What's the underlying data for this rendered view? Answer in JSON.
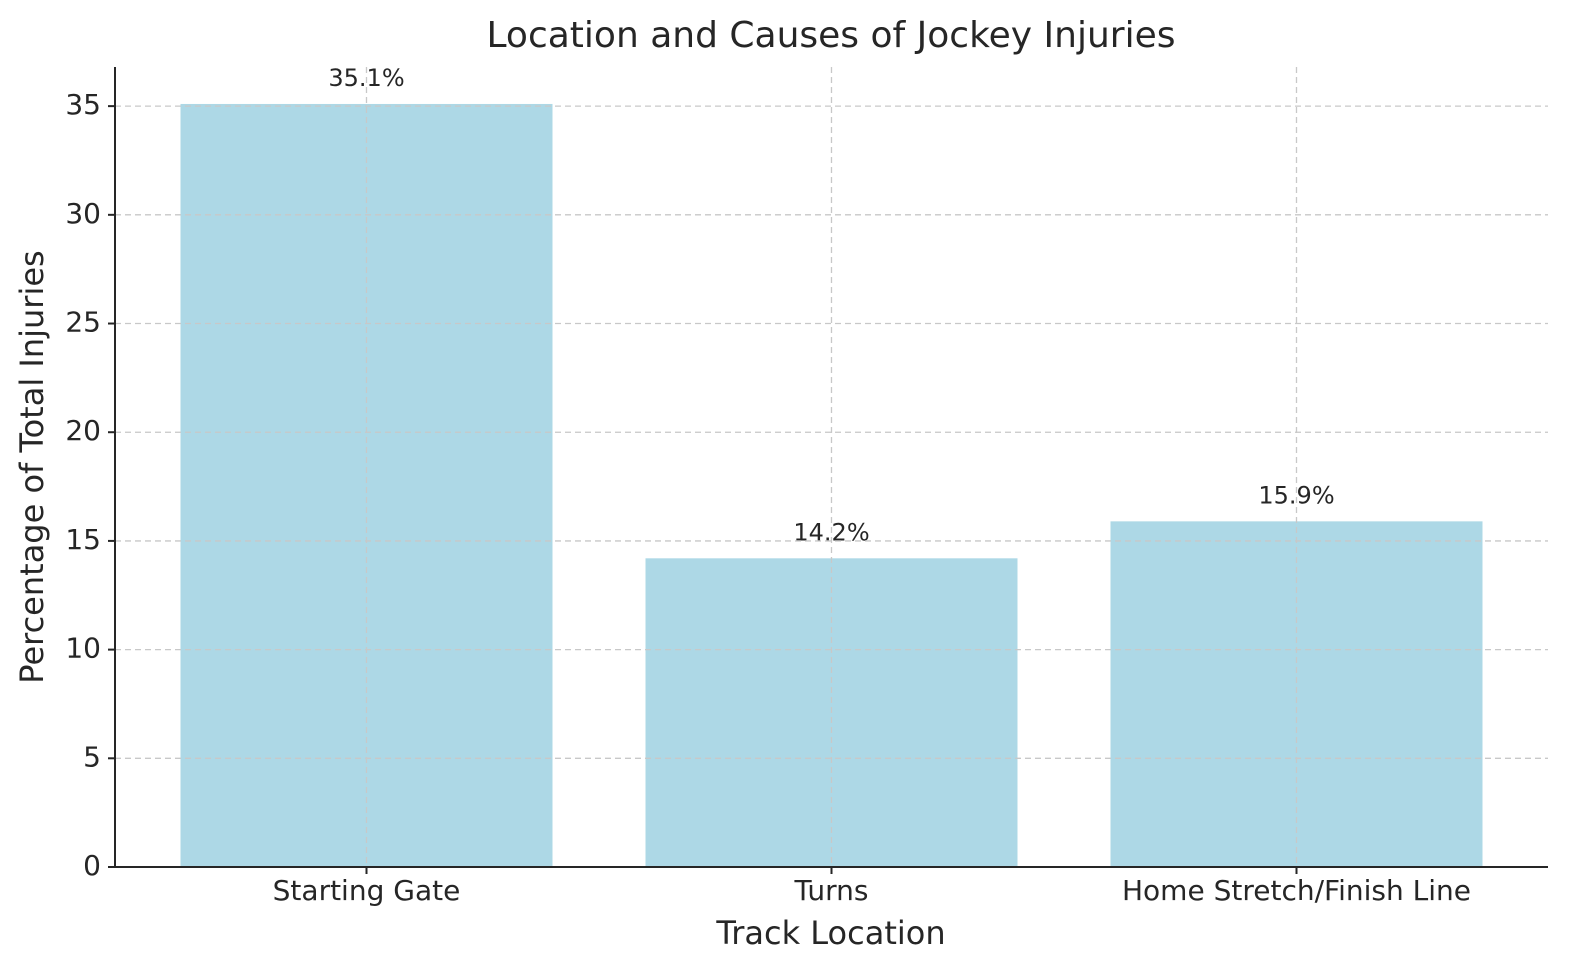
{
  "chart_data": {
    "type": "bar",
    "title": "Location and Causes of Jockey Injuries",
    "x_label": "Track Location",
    "y_label": "Percentage of Total Injuries",
    "categories": [
      "Starting Gate",
      "Turns",
      "Home Stretch/Finish Line"
    ],
    "values": [
      35.1,
      14.2,
      15.9
    ],
    "value_labels": [
      "35.1%",
      "14.2%",
      "15.9%"
    ],
    "color": "#add8e6",
    "ylim": [
      0,
      36.8
    ],
    "yticks": [
      0,
      5,
      10,
      15,
      20,
      25,
      30,
      35
    ],
    "grid": true
  }
}
